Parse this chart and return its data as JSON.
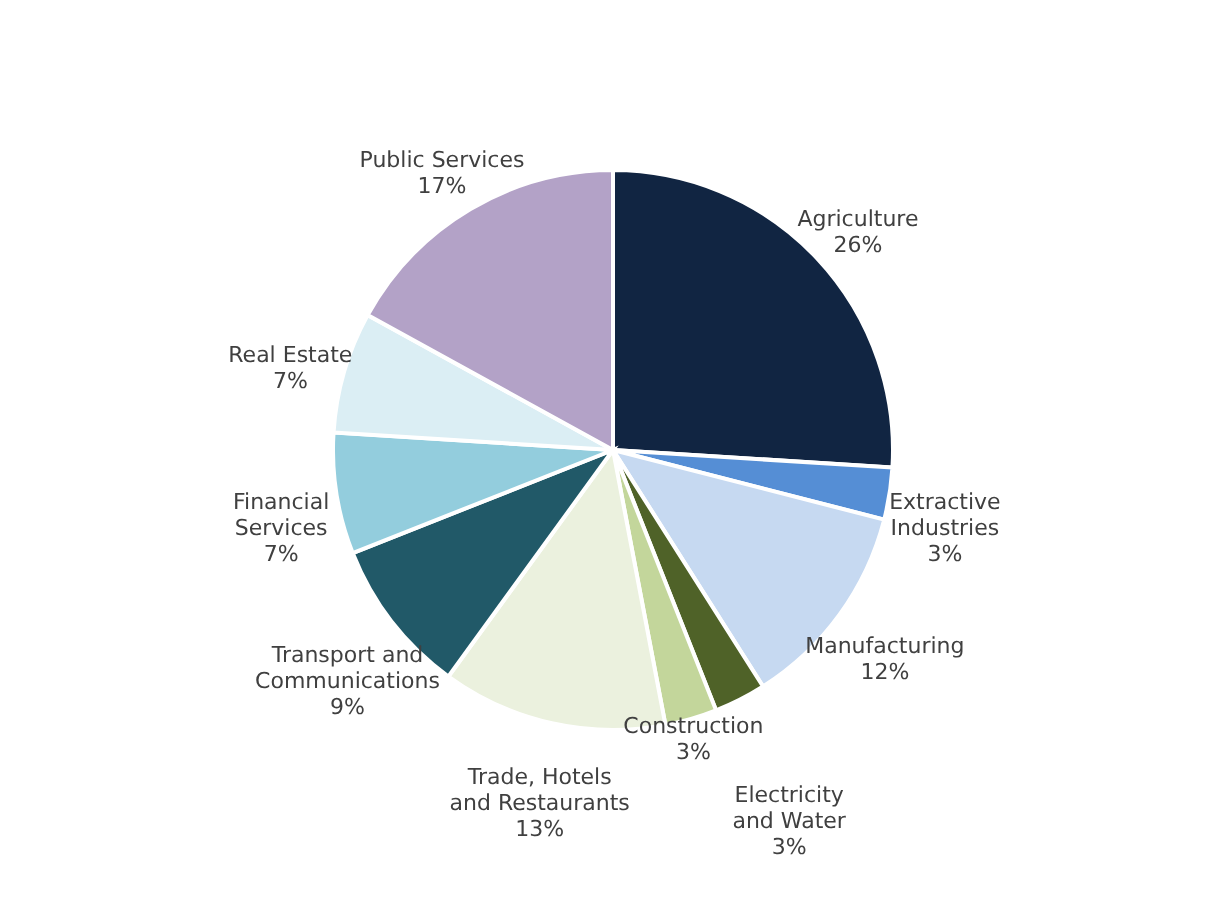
{
  "chart_data": {
    "type": "pie",
    "categories": [
      "Agriculture",
      "Extractive Industries",
      "Manufacturing",
      "Electricity and Water",
      "Construction",
      "Trade, Hotels and Restaurants",
      "Transport and Communications",
      "Financial Services",
      "Real Estate",
      "Public Services"
    ],
    "values": [
      26,
      3,
      12,
      3,
      3,
      13,
      9,
      7,
      7,
      17
    ],
    "value_labels": [
      "26%",
      "3%",
      "12%",
      "3%",
      "3%",
      "13%",
      "9%",
      "7%",
      "7%",
      "17%"
    ],
    "colors": [
      "#112542",
      "#558ed5",
      "#c6d9f1",
      "#4f6228",
      "#c3d69b",
      "#ebf1de",
      "#215968",
      "#93cddd",
      "#dbeef4",
      "#b3a2c7"
    ],
    "legend": false
  }
}
